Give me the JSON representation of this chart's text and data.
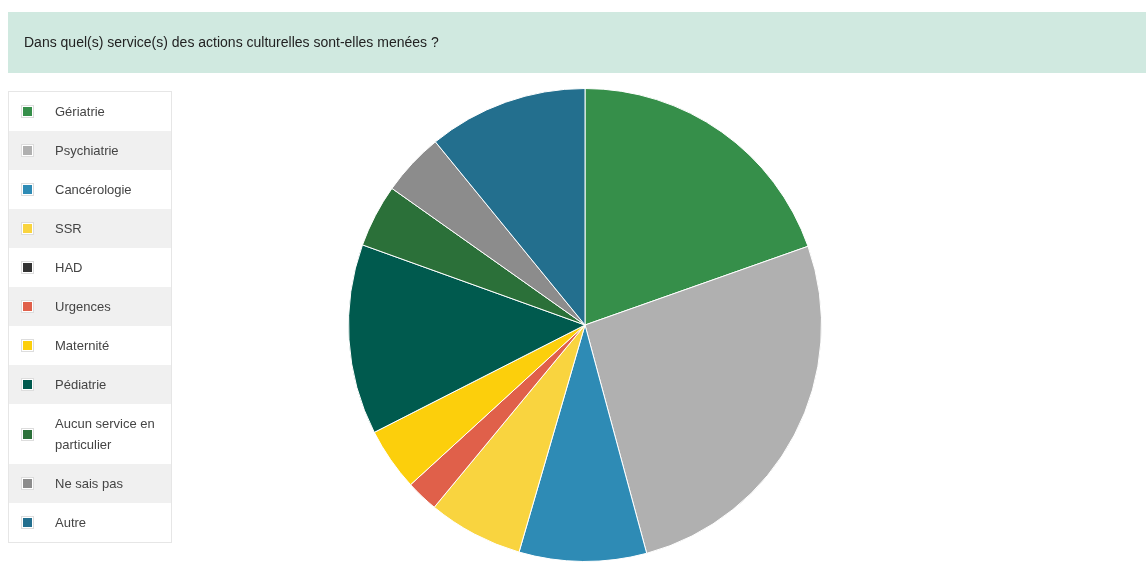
{
  "chart_data": {
    "type": "pie",
    "title": "Dans quel(s) service(s) des actions culturelles sont-elles menées ?",
    "categories": [
      "Gériatrie",
      "Psychiatrie",
      "Cancérologie",
      "SSR",
      "HAD",
      "Urgences",
      "Maternité",
      "Pédiatrie",
      "Aucun service en particulier",
      "Ne sais pas",
      "Autre"
    ],
    "values": [
      19.6,
      26.2,
      8.7,
      6.5,
      0,
      2.2,
      4.3,
      13.0,
      4.3,
      4.3,
      10.9
    ],
    "colors": [
      "#368f4a",
      "#b0b0b0",
      "#2e8bb5",
      "#f9d43f",
      "#333333",
      "#e0604a",
      "#fccf0c",
      "#005a4e",
      "#2b7039",
      "#8c8c8c",
      "#236f8e"
    ],
    "legend": "left"
  }
}
